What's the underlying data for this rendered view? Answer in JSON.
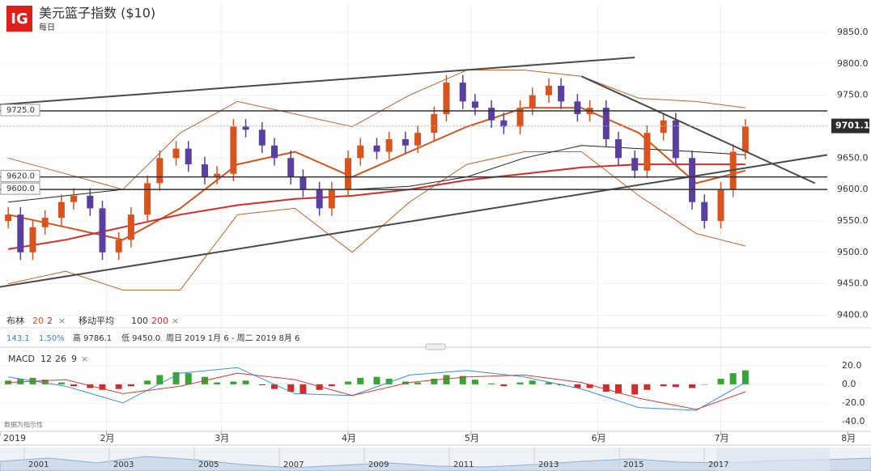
{
  "header": {
    "logo": "IG",
    "title": "美元篮子指数 ($10)",
    "interval": "每日"
  },
  "info_bar": {
    "bollinger_label": "布林",
    "bollinger_period": 20,
    "bollinger_dev": 2,
    "ma_label": "移动平均",
    "ma_periods": [
      100,
      200
    ],
    "change": 143.1,
    "change_pct": "1.50%",
    "high": "高 9786.1",
    "low": "低 9450.0",
    "range": "周日 2019 1月 6 - 周二 2019 8月 6"
  },
  "chart_data": [
    {
      "type": "candlestick",
      "x": [
        8,
        11,
        14,
        17,
        21,
        24,
        28,
        31,
        35,
        38,
        42,
        45,
        49,
        52,
        56,
        59,
        63,
        66,
        70,
        73,
        77,
        80,
        84,
        87,
        91,
        94,
        98,
        101,
        105,
        108,
        112,
        115,
        119,
        122,
        126,
        129,
        133,
        136,
        140,
        143,
        147,
        150,
        154,
        157,
        161,
        164,
        168,
        171,
        175,
        178,
        182,
        185,
        188
      ],
      "open": [
        9550,
        9560,
        9500,
        9540,
        9555,
        9580,
        9590,
        9570,
        9500,
        9520,
        9560,
        9610,
        9650,
        9665,
        9640,
        9620,
        9625,
        9700,
        9695,
        9670,
        9650,
        9620,
        9600,
        9570,
        9600,
        9650,
        9670,
        9660,
        9680,
        9670,
        9690,
        9720,
        9770,
        9740,
        9730,
        9710,
        9700,
        9730,
        9750,
        9765,
        9740,
        9720,
        9730,
        9680,
        9650,
        9630,
        9690,
        9710,
        9650,
        9580,
        9550,
        9600,
        9660
      ],
      "high": [
        9572,
        9572,
        9552,
        9567,
        9592,
        9602,
        9602,
        9582,
        9532,
        9572,
        9622,
        9662,
        9677,
        9677,
        9652,
        9637,
        9712,
        9712,
        9707,
        9682,
        9662,
        9632,
        9612,
        9612,
        9662,
        9682,
        9682,
        9692,
        9692,
        9702,
        9732,
        9782,
        9782,
        9752,
        9742,
        9722,
        9742,
        9762,
        9777,
        9777,
        9752,
        9742,
        9742,
        9692,
        9662,
        9702,
        9722,
        9722,
        9662,
        9592,
        9612,
        9672,
        9712
      ],
      "low": [
        9538,
        9488,
        9488,
        9528,
        9543,
        9568,
        9558,
        9488,
        9488,
        9508,
        9548,
        9598,
        9638,
        9628,
        9608,
        9608,
        9613,
        9683,
        9658,
        9638,
        9608,
        9588,
        9558,
        9558,
        9588,
        9638,
        9648,
        9648,
        9658,
        9658,
        9678,
        9708,
        9728,
        9718,
        9698,
        9688,
        9688,
        9718,
        9738,
        9728,
        9708,
        9708,
        9668,
        9638,
        9618,
        9618,
        9678,
        9638,
        9568,
        9538,
        9538,
        9588,
        9648
      ],
      "close": [
        9560,
        9500,
        9540,
        9555,
        9580,
        9590,
        9570,
        9500,
        9520,
        9560,
        9610,
        9650,
        9665,
        9640,
        9620,
        9625,
        9700,
        9695,
        9670,
        9650,
        9620,
        9600,
        9570,
        9600,
        9650,
        9670,
        9660,
        9680,
        9670,
        9690,
        9720,
        9770,
        9740,
        9730,
        9710,
        9700,
        9730,
        9750,
        9765,
        9740,
        9720,
        9730,
        9680,
        9650,
        9630,
        9690,
        9710,
        9650,
        9580,
        9550,
        9600,
        9660,
        9700
      ],
      "up_color": "#d9531e",
      "down_color": "#5b3f9e",
      "xlim": [
        6,
        208
      ],
      "ylim": [
        9380,
        9895
      ],
      "xticks": [
        {
          "value": 6,
          "label": "2019"
        },
        {
          "value": 32,
          "label": "2月"
        },
        {
          "value": 60,
          "label": "3月"
        },
        {
          "value": 91,
          "label": "4月"
        },
        {
          "value": 121,
          "label": "5月"
        },
        {
          "value": 152,
          "label": "6月"
        },
        {
          "value": 182,
          "label": "7月"
        },
        {
          "value": 213,
          "label": "8月"
        }
      ],
      "yticks": [
        {
          "value": 9400,
          "label": "9400.0"
        },
        {
          "value": 9450,
          "label": "9450.0"
        },
        {
          "value": 9500,
          "label": "9500.0"
        },
        {
          "value": 9550,
          "label": "9550.0"
        },
        {
          "value": 9600,
          "label": "9600.0"
        },
        {
          "value": 9650,
          "label": "9650.0"
        },
        {
          "value": 9700,
          "label": "9700.0"
        },
        {
          "value": 9750,
          "label": "9750.0"
        },
        {
          "value": 9800,
          "label": "9800.0"
        },
        {
          "value": 9850,
          "label": "9850.0"
        }
      ],
      "grid": true,
      "overlays": {
        "x": [
          8,
          22,
          36,
          50,
          64,
          78,
          92,
          106,
          120,
          134,
          148,
          162,
          176,
          188
        ],
        "lines": [
          {
            "color": "#c0622b",
            "width": 1,
            "values": [
              9650,
              9625,
              9600,
              9690,
              9740,
              9720,
              9700,
              9750,
              9790,
              9790,
              9780,
              9745,
              9740,
              9730
            ]
          },
          {
            "color": "#c0622b",
            "width": 1,
            "values": [
              9450,
              9470,
              9440,
              9440,
              9560,
              9570,
              9500,
              9580,
              9640,
              9660,
              9660,
              9590,
              9530,
              9510
            ]
          },
          {
            "color": "#d4541c",
            "width": 2,
            "values": [
              9560,
              9540,
              9520,
              9570,
              9640,
              9660,
              9620,
              9660,
              9700,
              9730,
              9730,
              9690,
              9610,
              9630
            ]
          },
          {
            "color": "#222222",
            "width": 1,
            "values": [
              9580,
              9590,
              9600,
              9600,
              9600,
              9600,
              9600,
              9605,
              9620,
              9650,
              9670,
              9665,
              9660,
              9655
            ]
          },
          {
            "color": "#d62b2b",
            "width": 2,
            "values": [
              9505,
              9520,
              9540,
              9560,
              9575,
              9585,
              9590,
              9600,
              9615,
              9625,
              9635,
              9640,
              9640,
              9640
            ]
          }
        ]
      },
      "trendlines": [
        {
          "x": [
            6,
            161
          ],
          "values": [
            9735,
            9810
          ]
        },
        {
          "x": [
            6,
            208
          ],
          "values": [
            9445,
            9655
          ]
        },
        {
          "x": [
            148,
            205
          ],
          "values": [
            9780,
            9610
          ]
        }
      ],
      "levels": [
        {
          "value": 9725,
          "label": "9725.0"
        },
        {
          "value": 9620,
          "label": "9620.0"
        },
        {
          "value": 9600,
          "label": "9600.0"
        }
      ],
      "last_price": {
        "value": 9701.1,
        "label": "9701.1"
      }
    },
    {
      "type": "macd",
      "title": "MACD",
      "params": [
        12,
        26,
        9
      ],
      "x": [
        8,
        11,
        14,
        17,
        21,
        24,
        28,
        31,
        35,
        38,
        42,
        45,
        49,
        52,
        56,
        59,
        63,
        66,
        70,
        73,
        77,
        80,
        84,
        87,
        91,
        94,
        98,
        101,
        105,
        108,
        112,
        115,
        119,
        122,
        126,
        129,
        133,
        136,
        140,
        143,
        147,
        150,
        154,
        157,
        161,
        164,
        168,
        171,
        175,
        178,
        182,
        185,
        188
      ],
      "histogram": [
        4,
        6,
        7,
        5,
        2,
        -2,
        -4,
        -6,
        -5,
        -2,
        4,
        10,
        13,
        12,
        8,
        2,
        3,
        4,
        -1,
        -5,
        -8,
        -10,
        -6,
        -2,
        3,
        7,
        8,
        6,
        3,
        2,
        6,
        10,
        9,
        5,
        1,
        -2,
        2,
        4,
        2,
        -1,
        -4,
        -4,
        -8,
        -10,
        -11,
        -6,
        -2,
        -3,
        -4,
        0,
        6,
        12,
        15
      ],
      "pos_color": "#3aa335",
      "neg_color": "#d42a2a",
      "lines_x": [
        8,
        22,
        36,
        50,
        64,
        78,
        92,
        106,
        120,
        134,
        148,
        162,
        176,
        188
      ],
      "macd": {
        "color": "#3a8fd6",
        "values": [
          8,
          -2,
          -20,
          12,
          18,
          -10,
          -12,
          10,
          15,
          8,
          -5,
          -25,
          -28,
          2
        ]
      },
      "signal": {
        "color": "#d43a3a",
        "values": [
          2,
          5,
          -10,
          -2,
          12,
          5,
          -12,
          2,
          8,
          10,
          2,
          -15,
          -27,
          -8
        ]
      },
      "xlim": [
        6,
        208
      ],
      "ylim": [
        -48,
        33
      ],
      "yticks": [
        {
          "value": 20,
          "label": "20.0"
        },
        {
          "value": 0,
          "label": "0.0"
        },
        {
          "value": -20,
          "label": "-20.0"
        },
        {
          "value": -40,
          "label": "-40.0"
        }
      ],
      "note": "数据为指示性"
    }
  ],
  "navigator": {
    "years": [
      "2001",
      "2003",
      "2005",
      "2007",
      "2009",
      "2011",
      "2013",
      "2015",
      "2017"
    ]
  }
}
